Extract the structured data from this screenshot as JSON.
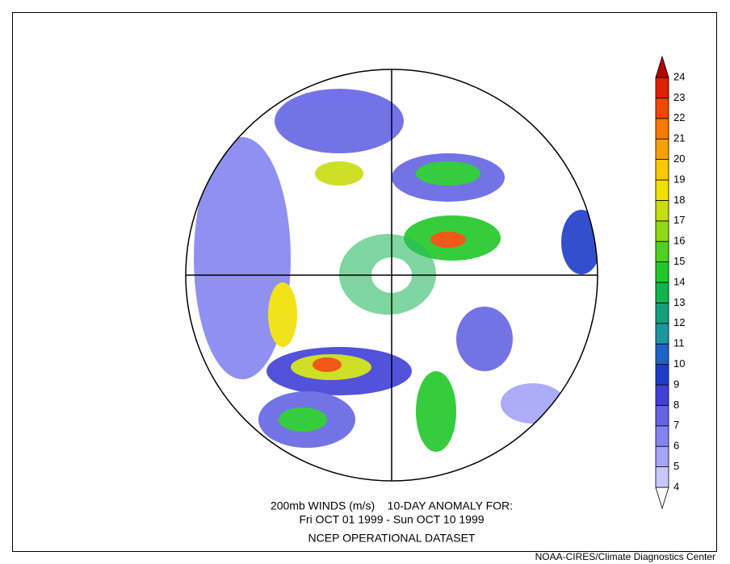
{
  "title_lines": [
    "200mb WINDS (m/s)    10-DAY ANOMALY FOR:",
    "Fri OCT 01 1999 - Sun OCT 10 1999",
    "NCEP OPERATIONAL DATASET"
  ],
  "credit": "NOAA-CIRES/Climate Diagnostics Center",
  "colorbar": {
    "levels": [
      4,
      5,
      6,
      7,
      8,
      9,
      10,
      11,
      12,
      13,
      14,
      15,
      16,
      17,
      18,
      19,
      20,
      21,
      22,
      23,
      24
    ],
    "colors": [
      "#ffffff",
      "#c8c8ff",
      "#a4a4f8",
      "#8484f0",
      "#6464e4",
      "#4040d8",
      "#1e3cc8",
      "#1e64c8",
      "#1e96a0",
      "#14a07a",
      "#12b450",
      "#20c828",
      "#50d020",
      "#90d818",
      "#c8dc10",
      "#f0e000",
      "#f8c800",
      "#f8a000",
      "#f87800",
      "#f04800",
      "#e01e00",
      "#b40000"
    ]
  }
}
